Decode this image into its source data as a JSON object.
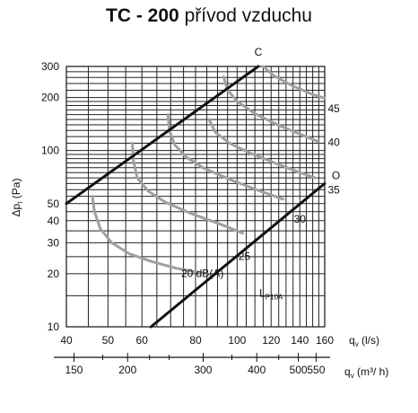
{
  "title": {
    "model": "TC - 200",
    "desc": "přívod vzduchu"
  },
  "chart_data": {
    "type": "line",
    "scale": "log-log",
    "grid": true,
    "x_axis": {
      "label": "q",
      "label_sub": "v",
      "label_unit": " (l/s)",
      "range": [
        40,
        160
      ],
      "ticks": [
        {
          "value": 40,
          "label": "40"
        },
        {
          "value": 50,
          "label": "50"
        },
        {
          "value": 60,
          "label": "60"
        },
        {
          "value": 80,
          "label": "80"
        },
        {
          "value": 100,
          "label": "100"
        },
        {
          "value": 120,
          "label": "120"
        },
        {
          "value": 140,
          "label": "140"
        },
        {
          "value": 160,
          "label": "160"
        }
      ]
    },
    "x2_axis": {
      "label": "q",
      "label_sub": "v",
      "label_unit": " (m³/ h)",
      "ticks": [
        {
          "value": 150,
          "label": "150"
        },
        {
          "value": 200,
          "label": "200"
        },
        {
          "value": 300,
          "label": "300"
        },
        {
          "value": 400,
          "label": "400"
        },
        {
          "value": 500,
          "label": "500"
        },
        {
          "value": 550,
          "label": "550"
        }
      ]
    },
    "y_axis": {
      "label": "Δp",
      "label_sub": "t",
      "label_unit": " (Pa)",
      "range": [
        10,
        300
      ],
      "ticks": [
        {
          "value": 10,
          "label": "10"
        },
        {
          "value": 20,
          "label": "20"
        },
        {
          "value": 30,
          "label": "30"
        },
        {
          "value": 40,
          "label": "40"
        },
        {
          "value": 50,
          "label": "50"
        },
        {
          "value": 100,
          "label": "100"
        },
        {
          "value": 200,
          "label": "200"
        },
        {
          "value": 300,
          "label": "300"
        }
      ]
    },
    "boundary_lines": [
      {
        "name": "C",
        "points": [
          [
            40,
            50
          ],
          [
            112,
            300
          ]
        ]
      },
      {
        "name": "O",
        "points": [
          [
            63,
            10
          ],
          [
            160,
            65
          ]
        ]
      }
    ],
    "noise_curves": [
      {
        "label": "20 dB(A)",
        "points": [
          [
            46,
            55
          ],
          [
            46.5,
            45
          ],
          [
            48,
            36
          ],
          [
            51,
            30
          ],
          [
            56,
            26
          ],
          [
            63,
            23.5
          ],
          [
            72,
            21.5
          ],
          [
            85,
            20
          ]
        ]
      },
      {
        "label": "25",
        "points": [
          [
            57,
            110
          ],
          [
            57.3,
            88
          ],
          [
            58.5,
            70
          ],
          [
            62,
            59
          ],
          [
            68,
            51
          ],
          [
            78,
            44
          ],
          [
            92,
            38
          ],
          [
            103,
            34
          ]
        ]
      },
      {
        "label": "30",
        "points": [
          [
            69,
            160
          ],
          [
            69.5,
            130
          ],
          [
            71.5,
            108
          ],
          [
            76,
            92
          ],
          [
            84,
            79
          ],
          [
            97,
            68
          ],
          [
            115,
            58
          ],
          [
            128,
            53
          ]
        ]
      },
      {
        "label": "35",
        "points": [
          [
            86,
            150
          ],
          [
            89,
            127
          ],
          [
            96,
            110
          ],
          [
            108,
            96
          ],
          [
            124,
            84
          ],
          [
            140,
            75
          ],
          [
            152,
            70
          ]
        ]
      },
      {
        "label": "40",
        "points": [
          [
            93,
            262
          ],
          [
            95,
            220
          ],
          [
            100,
            190
          ],
          [
            110,
            162
          ],
          [
            125,
            139
          ],
          [
            140,
            124
          ],
          [
            155,
            112
          ]
        ]
      },
      {
        "label": "45",
        "points": [
          [
            115,
            300
          ],
          [
            122,
            265
          ],
          [
            135,
            232
          ],
          [
            150,
            208
          ],
          [
            160,
            198
          ]
        ]
      }
    ],
    "annotations": [
      {
        "id": "c",
        "text": "C",
        "x": 112,
        "y": 345
      },
      {
        "id": "o",
        "text": "O",
        "x": 170,
        "y": 69
      },
      {
        "id": "n45",
        "text": "45",
        "x": 168,
        "y": 165
      },
      {
        "id": "n40",
        "text": "40",
        "x": 168,
        "y": 106
      },
      {
        "id": "n35",
        "text": "35",
        "x": 168,
        "y": 57
      },
      {
        "id": "n30",
        "text": "30",
        "x": 140,
        "y": 39
      },
      {
        "id": "n25",
        "text": "25",
        "x": 104,
        "y": 24
      },
      {
        "id": "n20",
        "text": "20 dB(A)",
        "x": 83,
        "y": 19.2
      },
      {
        "id": "lp",
        "text": "L",
        "sub": "P10A",
        "x": 120,
        "y": 14.8
      }
    ]
  }
}
